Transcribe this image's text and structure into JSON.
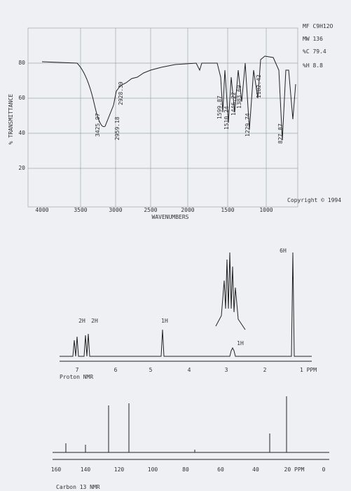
{
  "ir": {
    "info": [
      "MF C9H12O",
      "MW 136",
      "%C 79.4",
      "%H 8.8"
    ],
    "y_axis_label": "% TRANSMITTANCE",
    "y_ticks": [
      "80",
      "60",
      "40",
      "20"
    ],
    "x_ticks": [
      "4000",
      "3500",
      "3000",
      "2500",
      "2000",
      "1500",
      "1000"
    ],
    "x_axis_label": "WAVENUMBERS",
    "peak_labels": [
      "3425.97",
      "2959.18",
      "2928.39",
      "1599.87",
      "1510.24",
      "1446.22",
      "1383.69",
      "1229.74",
      "1182.42",
      "827.87"
    ],
    "copyright": "Copyright © 1994"
  },
  "h_nmr": {
    "integrals": [
      "2H",
      "2H",
      "1H",
      "1H",
      "6H"
    ],
    "x_ticks": [
      "7",
      "6",
      "5",
      "4",
      "3",
      "2",
      "1 PPM"
    ],
    "label": "Proton NMR"
  },
  "c_nmr": {
    "x_ticks": [
      "160",
      "140",
      "120",
      "100",
      "80",
      "60",
      "40",
      "20 PPM",
      "0"
    ],
    "label": "Carbon 13 NMR"
  }
}
